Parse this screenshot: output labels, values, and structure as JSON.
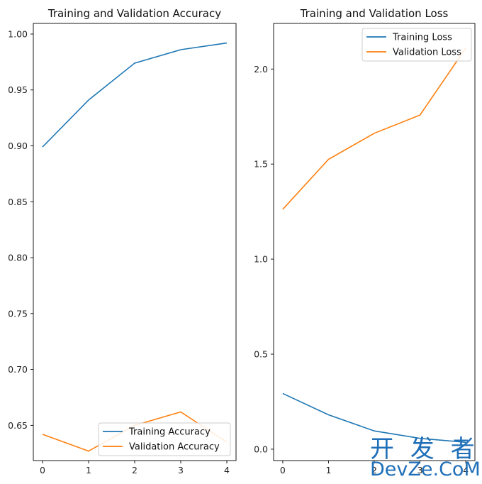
{
  "colors": {
    "training": "#1f77b4",
    "validation": "#ff7f0e",
    "axis": "#000000",
    "watermark": "#1f6fb8"
  },
  "watermark": {
    "cn": "开 发 者",
    "en": "DevZe.CoM"
  },
  "chart_data": [
    {
      "type": "line",
      "title": "Training and Validation Accuracy",
      "xlabel": "",
      "ylabel": "",
      "x": [
        0,
        1,
        2,
        3,
        4
      ],
      "xlim": [
        -0.2,
        4.2
      ],
      "ylim": [
        0.6185,
        1.0095
      ],
      "xticks": [
        0,
        1,
        2,
        3,
        4
      ],
      "yticks": [
        0.65,
        0.7,
        0.75,
        0.8,
        0.85,
        0.9,
        0.95,
        1.0
      ],
      "ytick_labels": [
        "0.65",
        "0.70",
        "0.75",
        "0.80",
        "0.85",
        "0.90",
        "0.95",
        "1.00"
      ],
      "grid": false,
      "legend_position": "lower-right",
      "series": [
        {
          "name": "Training Accuracy",
          "color_key": "training",
          "values": [
            0.899,
            0.941,
            0.974,
            0.986,
            0.992
          ]
        },
        {
          "name": "Validation Accuracy",
          "color_key": "validation",
          "values": [
            0.642,
            0.627,
            0.65,
            0.662,
            0.635
          ]
        }
      ]
    },
    {
      "type": "line",
      "title": "Training and Validation Loss",
      "xlabel": "",
      "ylabel": "",
      "x": [
        0,
        1,
        2,
        3,
        4
      ],
      "xlim": [
        -0.2,
        4.2
      ],
      "ylim": [
        -0.06,
        2.24
      ],
      "xticks": [
        0,
        1,
        2,
        3,
        4
      ],
      "yticks": [
        0.0,
        0.5,
        1.0,
        1.5,
        2.0
      ],
      "ytick_labels": [
        "0.0",
        "0.5",
        "1.0",
        "1.5",
        "2.0"
      ],
      "grid": false,
      "legend_position": "upper-right",
      "series": [
        {
          "name": "Training Loss",
          "color_key": "training",
          "values": [
            0.293,
            0.181,
            0.096,
            0.057,
            0.036
          ]
        },
        {
          "name": "Validation Loss",
          "color_key": "validation",
          "values": [
            1.262,
            1.525,
            1.662,
            1.758,
            2.11
          ]
        }
      ]
    }
  ]
}
